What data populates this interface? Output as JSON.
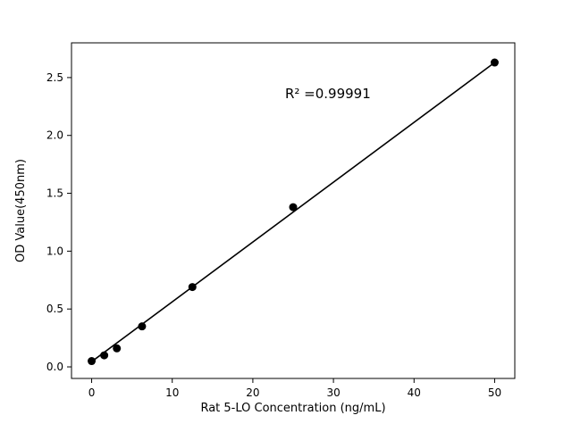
{
  "chart_data": {
    "type": "scatter",
    "title": "",
    "xlabel": "Rat 5-LO Concentration (ng/mL)",
    "ylabel": "OD Value(450nm)",
    "x": [
      0,
      1.56,
      3.125,
      6.25,
      12.5,
      25,
      50
    ],
    "y": [
      0.05,
      0.1,
      0.16,
      0.35,
      0.69,
      1.38,
      2.63
    ],
    "fit_line": {
      "x1": 0,
      "y1": 0.045,
      "x2": 50,
      "y2": 2.63
    },
    "annotation": {
      "text": "R² =0.99991",
      "x": 24,
      "y": 2.32
    },
    "xlim": [
      -2.5,
      52.5
    ],
    "ylim": [
      -0.1,
      2.8
    ],
    "xticks": [
      0,
      10,
      20,
      30,
      40,
      50
    ],
    "xtick_labels": [
      "0",
      "10",
      "20",
      "30",
      "40",
      "50"
    ],
    "yticks": [
      0.0,
      0.5,
      1.0,
      1.5,
      2.0,
      2.5
    ],
    "ytick_labels": [
      "0.0",
      "0.5",
      "1.0",
      "1.5",
      "2.0",
      "2.5"
    ],
    "marker_color": "#000000",
    "line_color": "#000000",
    "border_color": "#000000",
    "background_color": "#ffffff",
    "legend": null,
    "grid": false
  }
}
